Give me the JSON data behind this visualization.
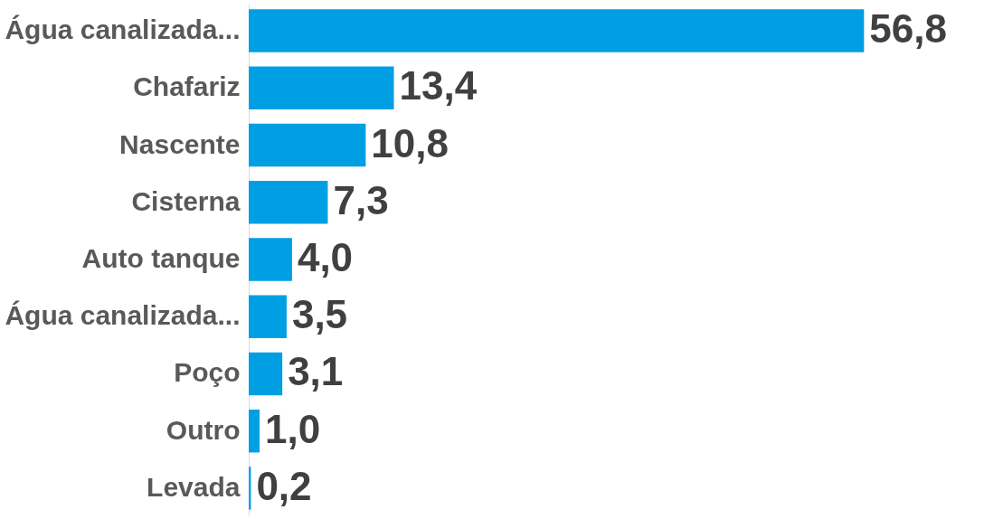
{
  "chart_data": {
    "type": "bar",
    "orientation": "horizontal",
    "categories": [
      "Água canalizada...",
      "Chafariz",
      "Nascente",
      "Cisterna",
      "Auto tanque",
      "Água canalizada...",
      "Poço",
      "Outro",
      "Levada"
    ],
    "values": [
      56.8,
      13.4,
      10.8,
      7.3,
      4.0,
      3.5,
      3.1,
      1.0,
      0.2
    ],
    "value_labels": [
      "56,8",
      "13,4",
      "10,8",
      "7,3",
      "4,0",
      "3,5",
      "3,1",
      "1,0",
      "0,2"
    ],
    "color": "#009fe3"
  }
}
